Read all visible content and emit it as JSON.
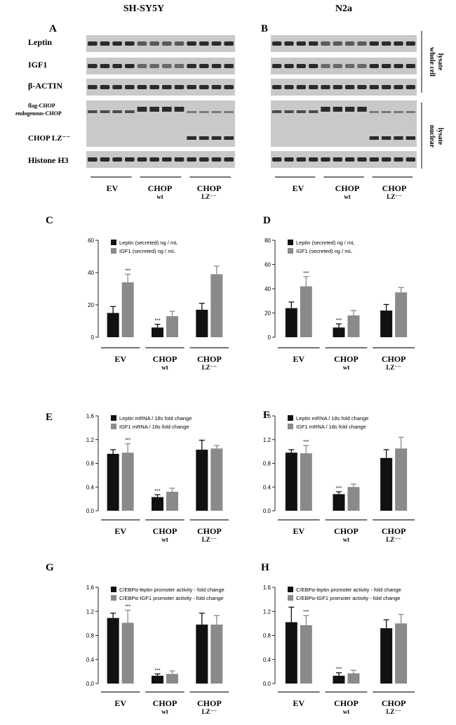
{
  "headers": {
    "left": "SH-SY5Y",
    "right": "N2a"
  },
  "panel_letters": [
    "A",
    "B",
    "C",
    "D",
    "E",
    "F",
    "G",
    "H"
  ],
  "blots": {
    "labels": [
      "Leptin",
      "IGF1",
      "β-ACTIN",
      "flag-CHOP",
      "endogenous-CHOP",
      "CHOP LZ⁻⁻",
      "Histone H3"
    ],
    "side_labels": [
      "whole cell",
      "lysate",
      "nuclear",
      "lysate"
    ]
  },
  "groups": [
    {
      "main": "EV",
      "sub": ""
    },
    {
      "main": "CHOP",
      "sub": "wt"
    },
    {
      "main": "CHOP",
      "sub": "LZ⁻⁻"
    }
  ],
  "colors": {
    "leptin": "#111111",
    "igf1": "#8a8a8a",
    "blot_bg": "#c9c9c9",
    "band": "#2a2a2a"
  },
  "chart_data": [
    {
      "panel": "C",
      "type": "bar",
      "categories": [
        "EV",
        "CHOP wt",
        "CHOP LZ⁻⁻"
      ],
      "series": [
        {
          "name": "Leptin (secreted) ng / mL",
          "values": [
            15,
            6,
            17
          ],
          "errors": [
            4,
            2,
            4
          ]
        },
        {
          "name": "IGF1 (secreted) ng / mL",
          "values": [
            34,
            13,
            39
          ],
          "errors": [
            5,
            3,
            5
          ]
        }
      ],
      "ylim": [
        0,
        60
      ],
      "ticks": [
        "0",
        "20",
        "40",
        "60"
      ],
      "significance": [
        "",
        "***",
        "***",
        "",
        "",
        ""
      ],
      "legend": "top-left"
    },
    {
      "panel": "D",
      "type": "bar",
      "categories": [
        "EV",
        "CHOP wt",
        "CHOP LZ⁻⁻"
      ],
      "series": [
        {
          "name": "Leptin (secreted) ng / mL",
          "values": [
            24,
            8,
            22
          ],
          "errors": [
            5,
            3,
            5
          ]
        },
        {
          "name": "IGF1 (secreted) ng / mL",
          "values": [
            42,
            18,
            37
          ],
          "errors": [
            8,
            4,
            4
          ]
        }
      ],
      "ylim": [
        0,
        80
      ],
      "ticks": [
        "0",
        "20",
        "40",
        "60",
        "80"
      ],
      "significance": [
        "",
        "***",
        "***",
        "",
        "",
        ""
      ],
      "legend": "top-left"
    },
    {
      "panel": "E",
      "type": "bar",
      "categories": [
        "EV",
        "CHOP wt",
        "CHOP LZ⁻⁻"
      ],
      "series": [
        {
          "name": "Leptin mRNA / 18s fold change",
          "values": [
            0.96,
            0.23,
            1.03
          ],
          "errors": [
            0.07,
            0.04,
            0.16
          ]
        },
        {
          "name": "IGF1 mRNA / 18s fold change",
          "values": [
            0.98,
            0.32,
            1.05
          ],
          "errors": [
            0.15,
            0.06,
            0.05
          ]
        }
      ],
      "ylim": [
        0,
        1.6
      ],
      "ticks": [
        "0.0",
        "0.4",
        "0.8",
        "1.2",
        "1.6"
      ],
      "significance": [
        "",
        "***",
        "***",
        "",
        "",
        ""
      ],
      "legend": "top-left"
    },
    {
      "panel": "F",
      "type": "bar",
      "categories": [
        "EV",
        "CHOP wt",
        "CHOP LZ⁻⁻"
      ],
      "series": [
        {
          "name": "Leptin mRNA / 18s fold change",
          "values": [
            0.98,
            0.28,
            0.89
          ],
          "errors": [
            0.05,
            0.04,
            0.14
          ]
        },
        {
          "name": "IGF1 mRNA / 18s fold change",
          "values": [
            0.97,
            0.4,
            1.05
          ],
          "errors": [
            0.13,
            0.05,
            0.19
          ]
        }
      ],
      "ylim": [
        0,
        1.6
      ],
      "ticks": [
        "0.0",
        "0.4",
        "0.8",
        "1.2",
        "1.6"
      ],
      "significance": [
        "",
        "***",
        "***",
        "",
        "",
        ""
      ],
      "legend": "top-left"
    },
    {
      "panel": "G",
      "type": "bar",
      "categories": [
        "EV",
        "CHOP wt",
        "CHOP LZ⁻⁻"
      ],
      "series": [
        {
          "name": "C/EBPα-leptin promoter activity - fold change",
          "values": [
            1.09,
            0.13,
            0.98
          ],
          "errors": [
            0.08,
            0.03,
            0.19
          ]
        },
        {
          "name": "C/EBPα-IGF1 promoter activity - fold change",
          "values": [
            1.01,
            0.16,
            0.98
          ],
          "errors": [
            0.21,
            0.05,
            0.15
          ]
        }
      ],
      "ylim": [
        0,
        1.6
      ],
      "ticks": [
        "0.0",
        "0.4",
        "0.8",
        "1.2",
        "1.6"
      ],
      "significance": [
        "",
        "***",
        "***",
        "",
        "",
        ""
      ],
      "legend": "top-left"
    },
    {
      "panel": "H",
      "type": "bar",
      "categories": [
        "EV",
        "CHOP wt",
        "CHOP LZ⁻⁻"
      ],
      "series": [
        {
          "name": "C/EBPα-leptin promoter activity - fold change",
          "values": [
            1.02,
            0.13,
            0.92
          ],
          "errors": [
            0.25,
            0.05,
            0.14
          ]
        },
        {
          "name": "C/EBPα-IGF1 promoter activity - fold change",
          "values": [
            0.97,
            0.17,
            1.0
          ],
          "errors": [
            0.16,
            0.05,
            0.15
          ]
        }
      ],
      "ylim": [
        0,
        1.6
      ],
      "ticks": [
        "0.0",
        "0.4",
        "0.8",
        "1.2",
        "1.6"
      ],
      "significance": [
        "",
        "***",
        "***",
        "",
        "",
        ""
      ],
      "legend": "top-left"
    }
  ]
}
